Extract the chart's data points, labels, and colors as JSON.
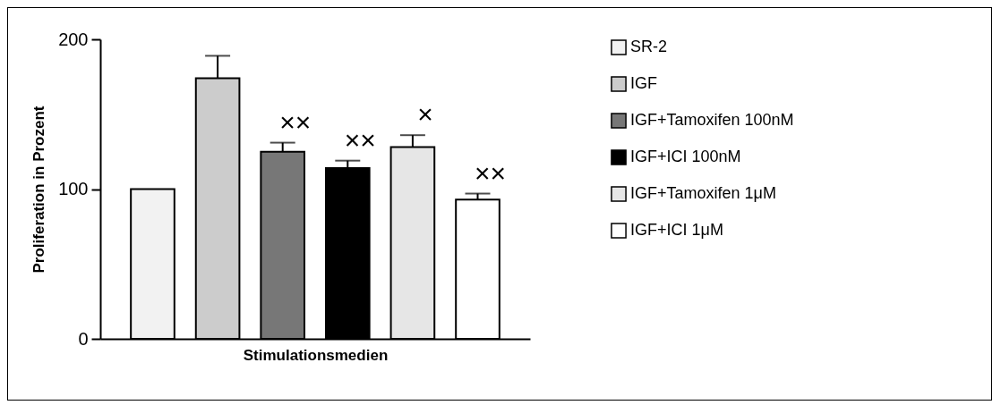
{
  "chart_data": {
    "type": "bar",
    "xlabel": "Stimulationsmedien",
    "ylabel": "Proliferation in Prozent",
    "categories": [
      null
    ],
    "series": [
      {
        "name": "SR-2",
        "color": "#f2f2f2",
        "values": [
          100
        ],
        "errors": [
          null
        ]
      },
      {
        "name": "IGF",
        "color": "#cccccc",
        "values": [
          174
        ],
        "errors": [
          15
        ]
      },
      {
        "name": "IGF+Tamoxifen 100nM",
        "color": "#777777",
        "values": [
          125
        ],
        "errors": [
          6
        ]
      },
      {
        "name": "IGF+ICI 100nM",
        "color": "#000000",
        "values": [
          114
        ],
        "errors": [
          5
        ]
      },
      {
        "name": "IGF+Tamoxifen 1μM",
        "color": "#e6e6e6",
        "values": [
          128
        ],
        "errors": [
          8
        ]
      },
      {
        "name": "IGF+ICI 1μM",
        "color": "#ffffff",
        "values": [
          93
        ],
        "errors": [
          4
        ]
      }
    ],
    "ylim": [
      0,
      200
    ],
    "yticks": [
      0,
      100,
      200
    ],
    "tick_labels": "y",
    "legend": "right",
    "annotations": [
      "××",
      "××",
      "×",
      "××"
    ]
  }
}
